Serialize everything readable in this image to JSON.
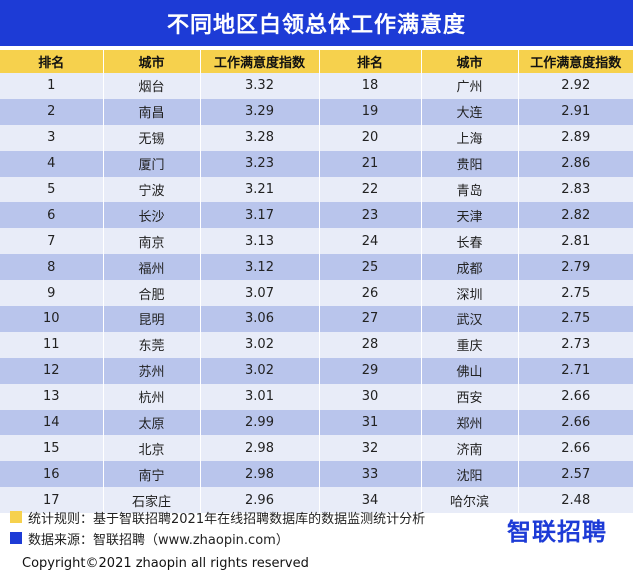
{
  "title": "不同地区白领总体工作满意度",
  "headers": [
    "排名",
    "城市",
    "工作满意度指数",
    "排名",
    "城市",
    "工作满意度指数"
  ],
  "rows": [
    [
      "1",
      "烟台",
      "3.32",
      "18",
      "广州",
      "2.92"
    ],
    [
      "2",
      "南昌",
      "3.29",
      "19",
      "大连",
      "2.91"
    ],
    [
      "3",
      "无锡",
      "3.28",
      "20",
      "上海",
      "2.89"
    ],
    [
      "4",
      "厦门",
      "3.23",
      "21",
      "贵阳",
      "2.86"
    ],
    [
      "5",
      "宁波",
      "3.21",
      "22",
      "青岛",
      "2.83"
    ],
    [
      "6",
      "长沙",
      "3.17",
      "23",
      "天津",
      "2.82"
    ],
    [
      "7",
      "南京",
      "3.13",
      "24",
      "长春",
      "2.81"
    ],
    [
      "8",
      "福州",
      "3.12",
      "25",
      "成都",
      "2.79"
    ],
    [
      "9",
      "合肥",
      "3.07",
      "26",
      "深圳",
      "2.75"
    ],
    [
      "10",
      "昆明",
      "3.06",
      "27",
      "武汉",
      "2.75"
    ],
    [
      "11",
      "东莞",
      "3.02",
      "28",
      "重庆",
      "2.73"
    ],
    [
      "12",
      "苏州",
      "3.02",
      "29",
      "佛山",
      "2.71"
    ],
    [
      "13",
      "杭州",
      "3.01",
      "30",
      "西安",
      "2.66"
    ],
    [
      "14",
      "太原",
      "2.99",
      "31",
      "郑州",
      "2.66"
    ],
    [
      "15",
      "北京",
      "2.98",
      "32",
      "济南",
      "2.66"
    ],
    [
      "16",
      "南宁",
      "2.98",
      "33",
      "沈阳",
      "2.57"
    ],
    [
      "17",
      "石家庄",
      "2.96",
      "34",
      "哈尔滨",
      "2.48"
    ]
  ],
  "notes": {
    "rule": "统计规则：基于智联招聘2021年在线招聘数据库的数据监测统计分析",
    "source": "数据来源：智联招聘（www.zhaopin.com）"
  },
  "logo_text": "智联招聘",
  "footer": "Copyright©2021 zhaopin all rights reserved",
  "colors": {
    "brand_blue": "#1d3bd6",
    "header_yellow": "#f6d14d",
    "row_light": "#e8ecf8",
    "row_dark": "#b9c5ec"
  }
}
